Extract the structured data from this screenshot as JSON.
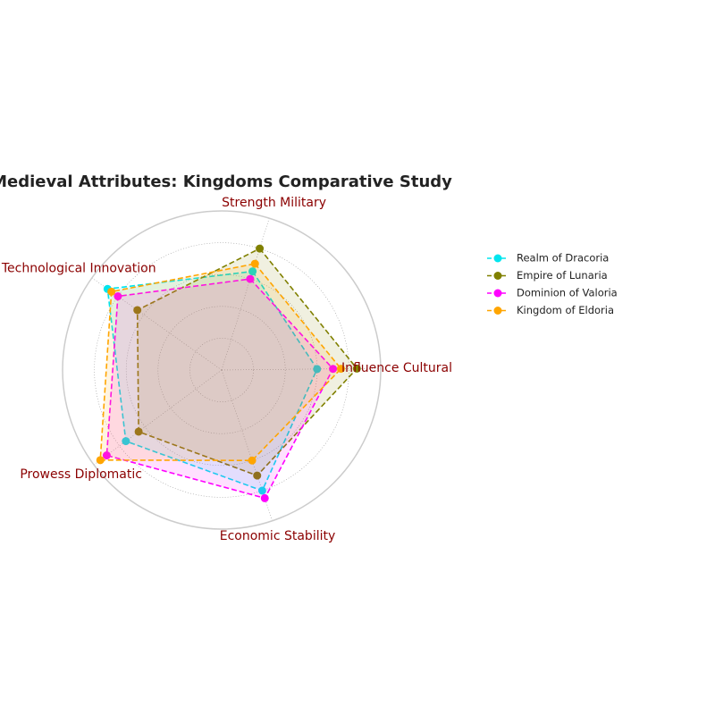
{
  "chart_data": {
    "type": "radar",
    "title": "Medieval Attributes: Kingdoms Comparative Study",
    "axes": [
      "Strength Military",
      "Influence Cultural",
      "Economic Stability",
      "Prowess Diplomatic",
      "Technological Innovation"
    ],
    "rlim": [
      0,
      10
    ],
    "grid": true,
    "legend_position": "right",
    "axis_label_color": "#8b0000",
    "series": [
      {
        "name": "Realm of Dracoria",
        "values": [
          6.5,
          6.0,
          8.0,
          7.5,
          8.8
        ],
        "color": "#00e5ee"
      },
      {
        "name": "Empire of Lunaria",
        "values": [
          8.0,
          8.5,
          7.0,
          6.5,
          6.5
        ],
        "color": "#808000"
      },
      {
        "name": "Dominion of Valoria",
        "values": [
          6.0,
          7.0,
          8.5,
          9.0,
          8.0
        ],
        "color": "#ff00ff"
      },
      {
        "name": "Kingdom of Eldoria",
        "values": [
          7.0,
          7.5,
          6.0,
          9.5,
          8.5
        ],
        "color": "#ffa500"
      }
    ]
  }
}
